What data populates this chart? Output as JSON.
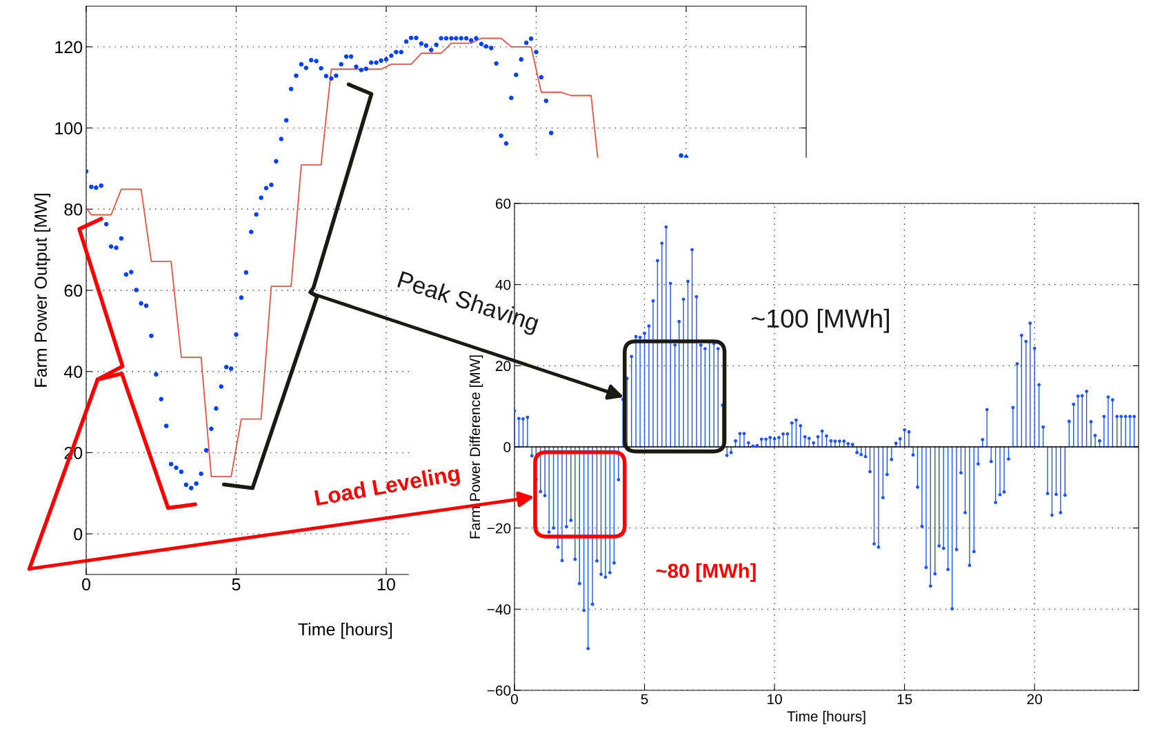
{
  "chart_data": [
    {
      "type": "scatter",
      "ylabel": "Farm Power Output [MW]",
      "xlabel": "Time [hours]",
      "xlim": [
        0,
        24
      ],
      "ylim": [
        -10,
        130
      ],
      "xticks": [
        0,
        5,
        10,
        {
          "value": 15,
          "label": null
        },
        {
          "value": 20,
          "label": null
        }
      ],
      "yticks": [
        0,
        20,
        40,
        60,
        80,
        100,
        120
      ],
      "grid": true,
      "series": [
        {
          "type": "scatter",
          "color": "#0040ff",
          "marker": "circle",
          "x": [
            0,
            0.17,
            0.33,
            0.5,
            0.67,
            0.83,
            1,
            1.17,
            1.33,
            1.5,
            1.67,
            1.83,
            2,
            2.17,
            2.33,
            2.5,
            2.67,
            2.83,
            3,
            3.17,
            3.33,
            3.5,
            3.67,
            3.83,
            4,
            4.17,
            4.33,
            4.5,
            4.67,
            4.83,
            5,
            5.17,
            5.33,
            5.5,
            5.67,
            5.83,
            6,
            6.17,
            6.33,
            6.5,
            6.67,
            6.83,
            7,
            7.17,
            7.33,
            7.5,
            7.67,
            7.83,
            8,
            8.17,
            8.33,
            8.5,
            8.67,
            8.83,
            9,
            9.17,
            9.33,
            9.5,
            9.67,
            9.83,
            10,
            10.17,
            10.33,
            10.5,
            10.67,
            10.83,
            11,
            11.17,
            11.33,
            11.5,
            11.67,
            11.83,
            12,
            12.17,
            12.33,
            12.5,
            12.67,
            12.83,
            13,
            13.17,
            13.33,
            13.5,
            13.67,
            13.83,
            14,
            14.17,
            14.33,
            14.5,
            14.67,
            14.83,
            15,
            15.17,
            15.33,
            15.5,
            19.83,
            20
          ],
          "values": [
            89.3,
            85.5,
            85.3,
            85.8,
            76.3,
            70.8,
            70.5,
            72.8,
            63.9,
            64.5,
            60.1,
            56.8,
            56.2,
            48.8,
            39.3,
            33.2,
            26.6,
            17.2,
            16.3,
            15.3,
            12.1,
            11.3,
            12.4,
            14.8,
            20.6,
            25.9,
            30.9,
            36.3,
            41.1,
            40.7,
            49.1,
            58.2,
            64.4,
            74.4,
            78.7,
            82.8,
            85.2,
            86.0,
            91.8,
            97.3,
            101.9,
            109.6,
            112.9,
            115.7,
            114.8,
            116.7,
            116.5,
            114.7,
            112.8,
            112.2,
            112.9,
            115.7,
            117.6,
            117.6,
            115.1,
            114.3,
            114.6,
            116.1,
            116.1,
            116.6,
            116.9,
            117.8,
            118.7,
            118.7,
            121.3,
            122.2,
            122.2,
            120.8,
            120.3,
            119.2,
            120.5,
            122.1,
            122.1,
            122.1,
            122.1,
            122.1,
            122.1,
            121.6,
            122.1,
            120.7,
            120.1,
            119.7,
            115.9,
            98.1,
            96.2,
            107.4,
            113.1,
            116.9,
            121.0,
            122.0,
            118.7,
            112.5,
            106.7,
            98.8,
            93.2,
            92.8
          ]
        },
        {
          "type": "line",
          "color": "#f0503c",
          "x": [
            0,
            0.17,
            0.83,
            1.17,
            1.83,
            2.17,
            2.83,
            3.17,
            3.83,
            4.17,
            4.83,
            5.17,
            5.83,
            6.17,
            6.83,
            7.17,
            7.83,
            8.17,
            9.83,
            10.17,
            10.83,
            11.17,
            11.83,
            12.17,
            12.83,
            13.17,
            13.83,
            14.17,
            14.83,
            15.17,
            15.83,
            16.17,
            16.83,
            17.05
          ],
          "values": [
            80.3,
            78.6,
            78.6,
            84.9,
            84.9,
            67.1,
            67.1,
            43.5,
            43.5,
            14.1,
            14.1,
            28.3,
            28.3,
            61.0,
            61.0,
            90.9,
            90.9,
            114.5,
            114.5,
            115.7,
            115.7,
            118.4,
            118.4,
            120.9,
            120.9,
            122.1,
            122.1,
            120.0,
            120.0,
            108.8,
            108.8,
            108.0,
            108.0,
            92.7
          ]
        }
      ]
    },
    {
      "type": "lollipop",
      "ylabel": "Farm Power Difference [MW]",
      "xlabel": "Time [hours]",
      "xlim": [
        0,
        24
      ],
      "ylim": [
        -60,
        60
      ],
      "xticks": [
        0,
        5,
        10,
        15,
        20
      ],
      "yticks": [
        {
          "value": -60,
          "label": "−60"
        },
        {
          "value": -40,
          "label": "−40"
        },
        {
          "value": -20,
          "label": "−20"
        },
        0,
        20,
        40,
        60
      ],
      "grid": true,
      "annotations": [
        "Peak Shaving",
        "Load Leveling",
        "~100 [MWh]",
        "~80 [MWh]"
      ],
      "ref_lines": [
        {
          "axis": "y",
          "value": 0,
          "color": "#000000"
        }
      ],
      "series": [
        {
          "color": "#1a53ff",
          "marker": "circle",
          "x": [
            0,
            0.17,
            0.33,
            0.5,
            0.67,
            0.83,
            1,
            1.17,
            1.33,
            1.5,
            1.67,
            1.83,
            2,
            2.17,
            2.33,
            2.5,
            2.67,
            2.83,
            3,
            3.17,
            3.33,
            3.5,
            3.67,
            3.83,
            4,
            4.17,
            4.33,
            4.5,
            4.67,
            4.83,
            5,
            5.17,
            5.33,
            5.5,
            5.67,
            5.83,
            6,
            6.17,
            6.33,
            6.5,
            6.67,
            6.83,
            7,
            7.17,
            7.33,
            7.5,
            7.67,
            7.83,
            8,
            8.17,
            8.33,
            8.5,
            8.67,
            8.83,
            9,
            9.17,
            9.33,
            9.5,
            9.67,
            9.83,
            10,
            10.17,
            10.33,
            10.5,
            10.67,
            10.83,
            11,
            11.17,
            11.33,
            11.5,
            11.67,
            11.83,
            12,
            12.17,
            12.33,
            12.5,
            12.67,
            12.83,
            13,
            13.17,
            13.33,
            13.5,
            13.67,
            13.83,
            14,
            14.17,
            14.33,
            14.5,
            14.67,
            14.83,
            15,
            15.17,
            15.33,
            15.5,
            15.67,
            15.83,
            16,
            16.17,
            16.33,
            16.5,
            16.67,
            16.83,
            17,
            17.17,
            17.33,
            17.5,
            17.67,
            17.83,
            18,
            18.17,
            18.33,
            18.5,
            18.67,
            18.83,
            19,
            19.17,
            19.33,
            19.5,
            19.67,
            19.83,
            20,
            20.17,
            20.33,
            20.5,
            20.67,
            20.83,
            21,
            21.17,
            21.33,
            21.5,
            21.67,
            21.83,
            22,
            22.17,
            22.33,
            22.5,
            22.67,
            22.83,
            23,
            23.17,
            23.33,
            23.5,
            23.67,
            23.83
          ],
          "values": [
            8.9,
            7.0,
            6.9,
            7.3,
            -2.2,
            -8.0,
            -11.0,
            -12.0,
            -21.0,
            -20.0,
            -24.7,
            -28.0,
            -19.7,
            -18.1,
            -27.7,
            -33.7,
            -40.3,
            -49.7,
            -38.8,
            -28.1,
            -31.4,
            -32.1,
            -31.0,
            -28.6,
            -8.1,
            11.7,
            16.9,
            22.3,
            27.2,
            27.0,
            28.0,
            29.8,
            36.0,
            45.9,
            50.2,
            54.2,
            40.3,
            25.1,
            30.9,
            36.4,
            40.8,
            48.6,
            37.0,
            25.1,
            24.2,
            25.9,
            25.5,
            24.2,
            10.3,
            -2.1,
            -1.4,
            1.5,
            3.3,
            3.3,
            1.0,
            0.2,
            0.3,
            1.9,
            1.9,
            2.3,
            2.0,
            2.3,
            3.2,
            3.2,
            5.9,
            6.6,
            5.2,
            2.5,
            2.1,
            1.0,
            2.5,
            3.9,
            2.7,
            1.5,
            1.4,
            1.4,
            1.4,
            0.8,
            0.6,
            -1.4,
            -1.9,
            -2.4,
            -6.1,
            -23.9,
            -24.7,
            -12.5,
            -6.8,
            -3.1,
            0.9,
            2.0,
            4.2,
            3.7,
            -2.0,
            -9.9,
            -19.6,
            -29.7,
            -34.3,
            -31.3,
            -24.4,
            -25.0,
            -30.2,
            -39.9,
            -25.3,
            -6.4,
            -16.2,
            -29.2,
            -25.8,
            -4.2,
            1.8,
            9.2,
            -3.6,
            -13.7,
            -11.8,
            -11.1,
            -3.0,
            9.7,
            20.5,
            27.5,
            26.0,
            30.5,
            24.3,
            15.3,
            4.9,
            -11.5,
            -16.8,
            -11.7,
            -16.2,
            -11.9,
            6.3,
            10.5,
            12.5,
            12.6,
            13.7,
            6.2,
            2.8,
            1.5,
            7.5,
            12.3,
            11.6,
            7.5,
            7.5,
            7.5,
            7.5,
            7.5
          ]
        }
      ]
    }
  ]
}
